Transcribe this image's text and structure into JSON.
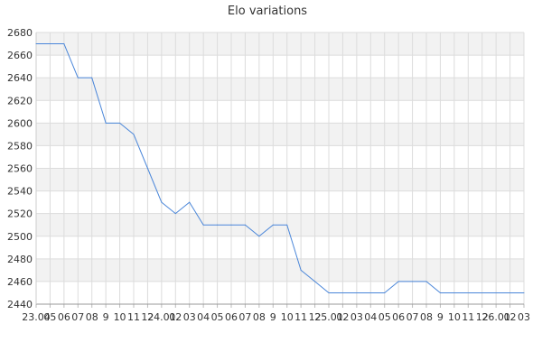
{
  "chart_data": {
    "type": "line",
    "title": "Elo variations",
    "xlabel": "",
    "ylabel": "",
    "ylim": [
      2440,
      2680
    ],
    "yticks": [
      2440,
      2460,
      2480,
      2500,
      2520,
      2540,
      2560,
      2580,
      2600,
      2620,
      2640,
      2660,
      2680
    ],
    "grid": true,
    "colors": {
      "line": "#4a86d9",
      "band": "#f2f2f2",
      "grid": "#dcdcdc"
    },
    "categories": [
      "23.04",
      "05",
      "06",
      "07",
      "08",
      "9",
      "10",
      "11",
      "12",
      "24.01",
      "02",
      "03",
      "04",
      "05",
      "06",
      "07",
      "08",
      "9",
      "10",
      "11",
      "12",
      "25.01",
      "02",
      "03",
      "04",
      "05",
      "06",
      "07",
      "08",
      "9",
      "10",
      "11",
      "12",
      "26.01",
      "02",
      "03"
    ],
    "series": [
      {
        "values": [
          2670,
          2670,
          2670,
          2640,
          2640,
          2600,
          2600,
          2590,
          2560,
          2530,
          2520,
          2530,
          2510,
          2510,
          2510,
          2510,
          2500,
          2510,
          2510,
          2470,
          2460,
          2450,
          2450,
          2450,
          2450,
          2450,
          2460,
          2460,
          2460,
          2450,
          2450,
          2450,
          2450,
          2450,
          2450,
          2450
        ]
      }
    ]
  }
}
